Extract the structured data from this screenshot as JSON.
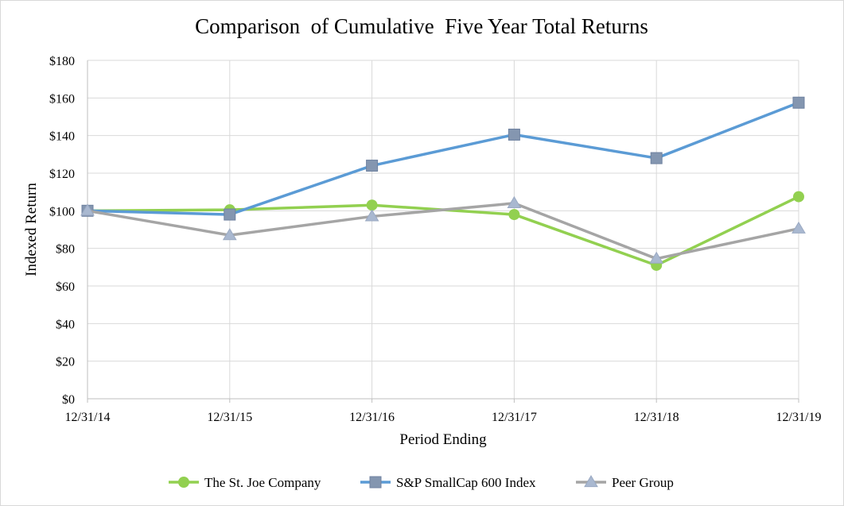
{
  "chart_data": {
    "type": "line",
    "title": "Comparison  of Cumulative  Five Year Total Returns",
    "xlabel": "Period Ending",
    "ylabel": "Indexed Return",
    "categories": [
      "12/31/14",
      "12/31/15",
      "12/31/16",
      "12/31/17",
      "12/31/18",
      "12/31/19"
    ],
    "yticks": [
      "$0",
      "$20",
      "$40",
      "$60",
      "$80",
      "$100",
      "$120",
      "$140",
      "$160",
      "$180"
    ],
    "ylim": [
      0,
      180
    ],
    "grid": true,
    "legend_position": "bottom",
    "series": [
      {
        "name": "The St. Joe Company",
        "color": "#92d050",
        "marker": "circle",
        "values": [
          100,
          100.5,
          103,
          98,
          71,
          107.5
        ]
      },
      {
        "name": "S&P SmallCap 600 Index",
        "color": "#5b9bd5",
        "marker": "square",
        "values": [
          100,
          98,
          124,
          140.5,
          128,
          157.5
        ]
      },
      {
        "name": "Peer Group",
        "color": "#a5a5a5",
        "marker": "triangle",
        "values": [
          100,
          87,
          97,
          104,
          74.5,
          90.5
        ]
      }
    ]
  }
}
